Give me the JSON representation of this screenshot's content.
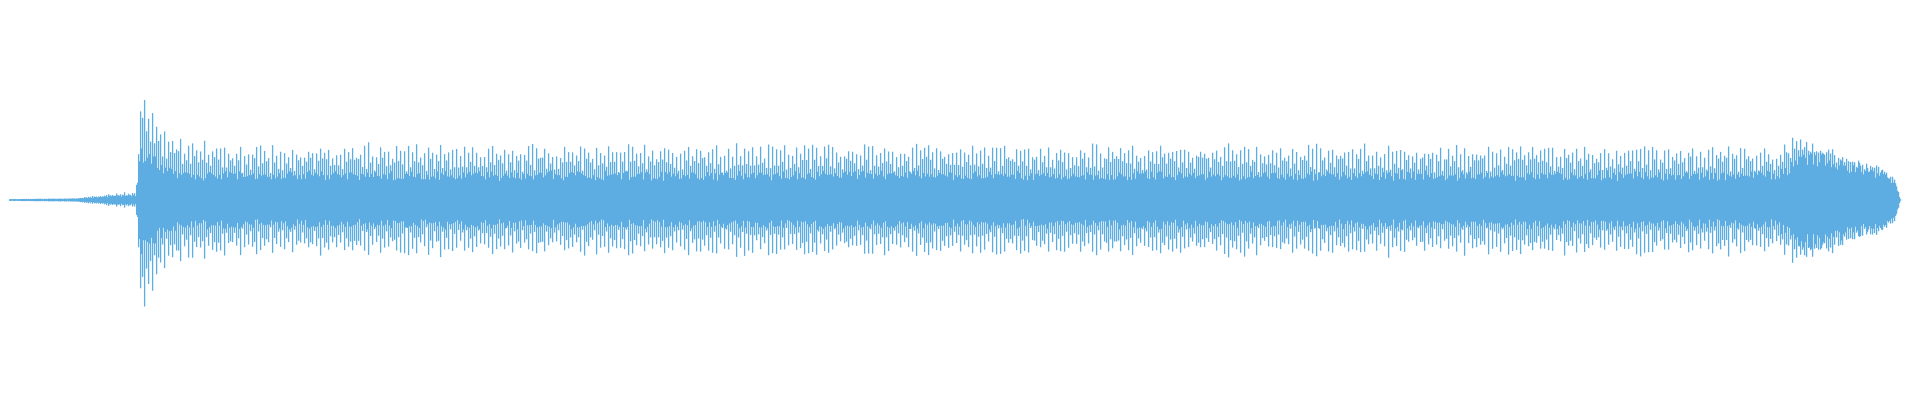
{
  "chart_data": {
    "type": "line",
    "kind": "audio-waveform",
    "title": "",
    "xlabel": "",
    "ylabel": "",
    "axes_visible": false,
    "grid": false,
    "legend": "none",
    "color": "#5dade2",
    "ylim": [
      -1,
      1
    ],
    "xlim": [
      0,
      1
    ],
    "envelope": {
      "time_fraction": [
        0.005,
        0.04,
        0.055,
        0.071,
        0.073,
        0.078,
        0.086,
        0.1,
        0.3,
        0.5,
        0.7,
        0.9,
        0.925,
        0.94,
        0.955,
        0.98,
        0.987,
        0.99
      ],
      "peak_amplitude": [
        0.005,
        0.01,
        0.03,
        0.045,
        0.57,
        0.56,
        0.4,
        0.3,
        0.29,
        0.29,
        0.29,
        0.29,
        0.29,
        0.34,
        0.27,
        0.17,
        0.12,
        0.0
      ],
      "core_amplitude": [
        0.005,
        0.008,
        0.02,
        0.03,
        0.3,
        0.25,
        0.18,
        0.15,
        0.15,
        0.15,
        0.15,
        0.15,
        0.15,
        0.26,
        0.23,
        0.16,
        0.1,
        0.0
      ]
    }
  }
}
